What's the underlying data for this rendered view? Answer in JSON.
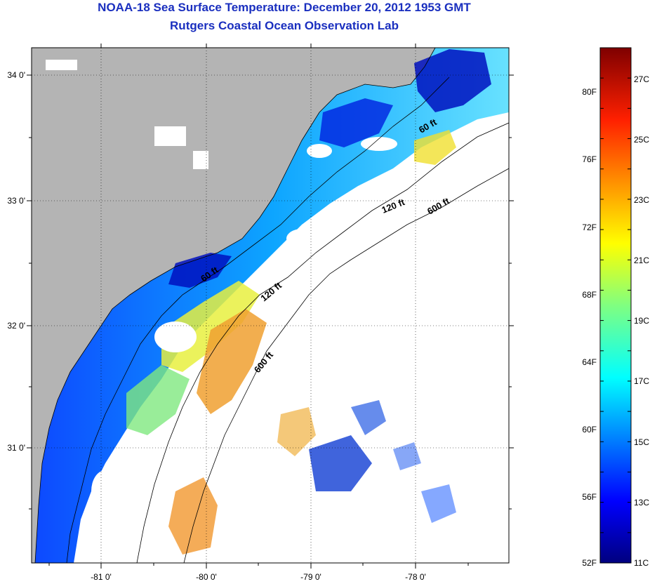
{
  "title": "NOAA-18 Sea Surface Temperature:  December 20, 2012 1953 GMT",
  "subtitle": "Rutgers Coastal Ocean Observation Lab",
  "map": {
    "lon_range": [
      -81.5,
      -77.2
    ],
    "lat_range": [
      30.1,
      34.2
    ],
    "lon_ticks": [
      {
        "value": -81,
        "label": "-81 0'"
      },
      {
        "value": -80,
        "label": "-80 0'"
      },
      {
        "value": -79,
        "label": "-79 0'"
      },
      {
        "value": -78,
        "label": "-78 0'"
      }
    ],
    "lat_ticks": [
      {
        "value": 34,
        "label": "34 0'"
      },
      {
        "value": 33,
        "label": "33 0'"
      },
      {
        "value": 32,
        "label": "32 0'"
      },
      {
        "value": 31,
        "label": "31 0'"
      }
    ],
    "contour_labels": [
      "120 ft",
      "600 ft",
      "600 ft",
      "120 ft",
      "60 ft",
      "60 ft"
    ],
    "colors": {
      "land": "#b4b4b4",
      "cloud": "#ffffff",
      "coast": "#000000"
    }
  },
  "colorbar": {
    "celsius": [
      "27C",
      "25C",
      "23C",
      "21C",
      "19C",
      "17C",
      "15C",
      "13C",
      "11C"
    ],
    "fahrenheit": [
      "80F",
      "76F",
      "72F",
      "68F",
      "64F",
      "60F",
      "56F",
      "52F"
    ],
    "range_c": [
      11,
      28
    ],
    "colors": [
      "#00007f",
      "#0000ff",
      "#0080ff",
      "#00ffff",
      "#80ff80",
      "#ffff00",
      "#ff8000",
      "#ff0000",
      "#7f0000"
    ]
  }
}
